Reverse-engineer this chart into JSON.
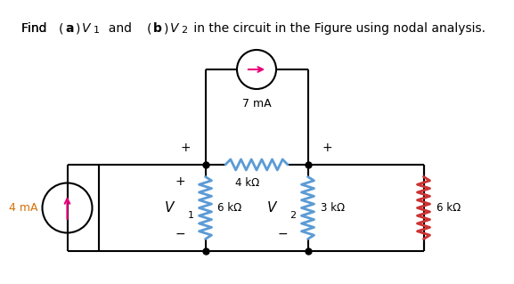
{
  "background_color": "#ffffff",
  "wire_color": "#000000",
  "resistor_color_blue": "#5b9bd5",
  "resistor_color_red": "#cc3333",
  "arrow_color": "#e8007a",
  "label_color_mA": "#d4720a",
  "labels": {
    "current_source_left": "4 mA",
    "current_source_top": "7 mA",
    "r1": "6 kΩ",
    "r2": "3 kΩ",
    "r3": "4 kΩ",
    "r4": "6 kΩ",
    "v1": "V",
    "v1_sub": "1",
    "v2": "V",
    "v2_sub": "2",
    "plus": "+",
    "minus": "−"
  },
  "title_parts": [
    {
      "text": "Find ",
      "bold": false,
      "fontsize": 10
    },
    {
      "text": "(",
      "bold": false,
      "fontsize": 10
    },
    {
      "text": "a",
      "bold": true,
      "fontsize": 10
    },
    {
      "text": ")",
      "bold": false,
      "fontsize": 10
    },
    {
      "text": "V",
      "bold": false,
      "fontsize": 10,
      "italic": true
    },
    {
      "text": "1",
      "bold": false,
      "fontsize": 8,
      "sub": true
    },
    {
      "text": "  and ",
      "bold": false,
      "fontsize": 10
    },
    {
      "text": "(",
      "bold": false,
      "fontsize": 10
    },
    {
      "text": "b",
      "bold": true,
      "fontsize": 10
    },
    {
      "text": ")",
      "bold": false,
      "fontsize": 10
    },
    {
      "text": "V",
      "bold": false,
      "fontsize": 10,
      "italic": true
    },
    {
      "text": "2",
      "bold": false,
      "fontsize": 8,
      "sub": true
    },
    {
      "text": " in the circuit in the Figure using nodal analysis.",
      "bold": false,
      "fontsize": 10
    }
  ]
}
